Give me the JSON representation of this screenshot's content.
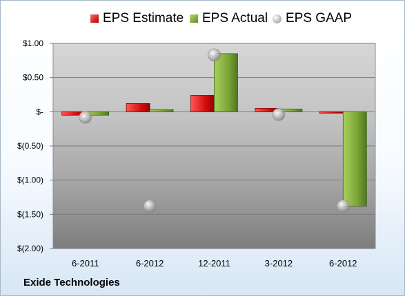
{
  "chart_data": {
    "type": "bar",
    "categories": [
      "6-2011",
      "6-2012",
      "12-2011",
      "3-2012",
      "6-2012"
    ],
    "series": [
      {
        "name": "EPS Estimate",
        "type": "bar",
        "color": "#c00000",
        "values": [
          -0.05,
          0.12,
          0.24,
          0.05,
          -0.01
        ]
      },
      {
        "name": "EPS Actual",
        "type": "bar",
        "color": "#76a030",
        "values": [
          -0.05,
          0.03,
          0.85,
          0.04,
          -1.38
        ]
      },
      {
        "name": "EPS GAAP",
        "type": "scatter",
        "color": "#a6a6a6",
        "values": [
          -0.08,
          -1.38,
          0.83,
          -0.04,
          -1.38
        ]
      }
    ],
    "y_ticks": [
      "$1.00",
      "$0.50",
      "$-",
      "$(0.50)",
      "$(1.00)",
      "$(1.50)",
      "$(2.00)"
    ],
    "ylim": [
      -2.0,
      1.0
    ],
    "grid": true,
    "legend": "top",
    "caption": "Exide Technologies"
  }
}
